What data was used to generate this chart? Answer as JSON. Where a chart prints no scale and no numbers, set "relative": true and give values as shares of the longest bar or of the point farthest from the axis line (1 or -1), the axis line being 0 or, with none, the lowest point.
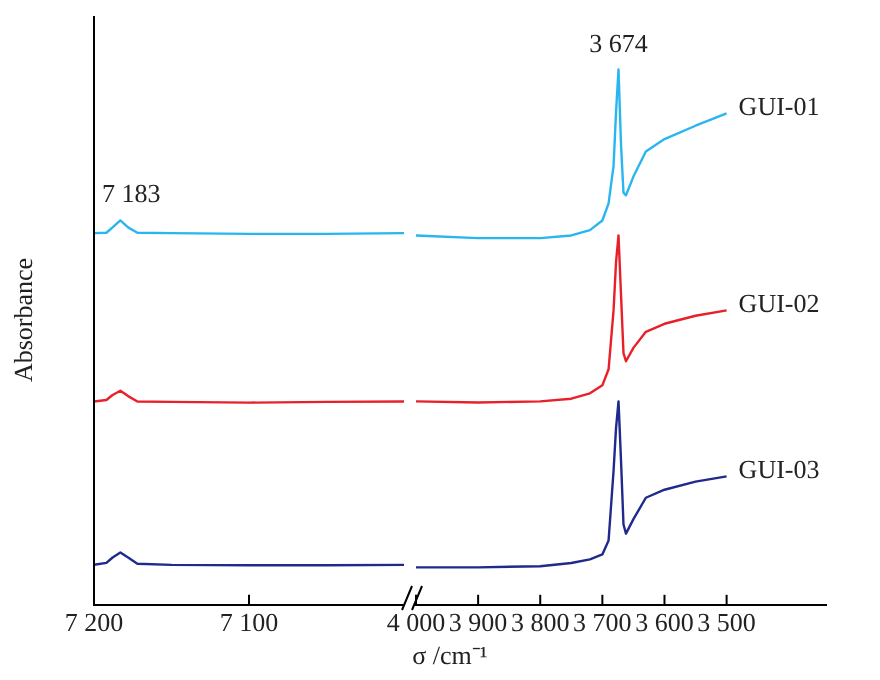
{
  "chart_data": [
    {
      "type": "line",
      "ylabel": "Absorbance",
      "relative": true,
      "tick_labels": "x",
      "grid": false,
      "xlim": [
        7200,
        7000
      ],
      "xticks": [
        {
          "value": 7200,
          "label": "7 200"
        },
        {
          "value": 7100,
          "label": "7 100"
        }
      ],
      "annotations": [
        {
          "text": "7 183",
          "x": 7183,
          "y": 1.0
        }
      ],
      "series": [
        {
          "color": "#29b6f0",
          "x": [
            7200,
            7192,
            7188,
            7183,
            7178,
            7172,
            7150,
            7100,
            7050,
            7000
          ],
          "values": [
            0.967,
            0.968,
            0.982,
            1.0,
            0.982,
            0.968,
            0.967,
            0.965,
            0.965,
            0.967
          ]
        },
        {
          "color": "#e8202a",
          "x": [
            7200,
            7192,
            7188,
            7183,
            7178,
            7172,
            7150,
            7100,
            7050,
            7000
          ],
          "values": [
            0.529,
            0.533,
            0.546,
            0.557,
            0.543,
            0.529,
            0.528,
            0.526,
            0.528,
            0.529
          ]
        },
        {
          "color": "#1f2a8c",
          "x": [
            7200,
            7192,
            7188,
            7183,
            7178,
            7172,
            7150,
            7100,
            7050,
            7000
          ],
          "values": [
            0.104,
            0.109,
            0.123,
            0.136,
            0.123,
            0.107,
            0.104,
            0.103,
            0.103,
            0.104
          ]
        }
      ]
    },
    {
      "type": "line",
      "xlabel": "σ /cm⁻¹",
      "relative": true,
      "tick_labels": "x",
      "grid": false,
      "xlim": [
        4000,
        3340
      ],
      "xticks": [
        {
          "value": 4000,
          "label": "4 000"
        },
        {
          "value": 3900,
          "label": "3 900"
        },
        {
          "value": 3800,
          "label": "3 800"
        },
        {
          "value": 3700,
          "label": "3 700"
        },
        {
          "value": 3600,
          "label": "3 600"
        },
        {
          "value": 3500,
          "label": "3 500"
        }
      ],
      "annotations": [
        {
          "text": "3 674",
          "x": 3674,
          "y": 1.0
        }
      ],
      "series": [
        {
          "name": "GUI-01",
          "color": "#29b6f0",
          "x": [
            4000,
            3900,
            3800,
            3750,
            3720,
            3700,
            3690,
            3682,
            3678,
            3674,
            3670,
            3666,
            3662,
            3650,
            3630,
            3600,
            3550,
            3500
          ],
          "values": [
            0.69,
            0.685,
            0.685,
            0.69,
            0.7,
            0.718,
            0.75,
            0.82,
            0.92,
            1.0,
            0.86,
            0.77,
            0.765,
            0.8,
            0.847,
            0.87,
            0.895,
            0.918
          ]
        },
        {
          "name": "GUI-02",
          "color": "#e8202a",
          "x": [
            4000,
            3900,
            3800,
            3750,
            3720,
            3700,
            3690,
            3682,
            3678,
            3674,
            3670,
            3666,
            3662,
            3650,
            3630,
            3600,
            3550,
            3500
          ],
          "values": [
            0.38,
            0.378,
            0.38,
            0.385,
            0.395,
            0.41,
            0.44,
            0.55,
            0.64,
            0.69,
            0.58,
            0.47,
            0.455,
            0.48,
            0.51,
            0.525,
            0.54,
            0.55
          ]
        },
        {
          "name": "GUI-03",
          "color": "#1f2a8c",
          "x": [
            4000,
            3900,
            3800,
            3750,
            3720,
            3700,
            3690,
            3682,
            3678,
            3674,
            3670,
            3666,
            3662,
            3650,
            3630,
            3600,
            3550,
            3500
          ],
          "values": [
            0.07,
            0.07,
            0.072,
            0.078,
            0.085,
            0.094,
            0.12,
            0.25,
            0.33,
            0.38,
            0.27,
            0.15,
            0.133,
            0.16,
            0.2,
            0.215,
            0.23,
            0.24
          ]
        }
      ]
    }
  ]
}
